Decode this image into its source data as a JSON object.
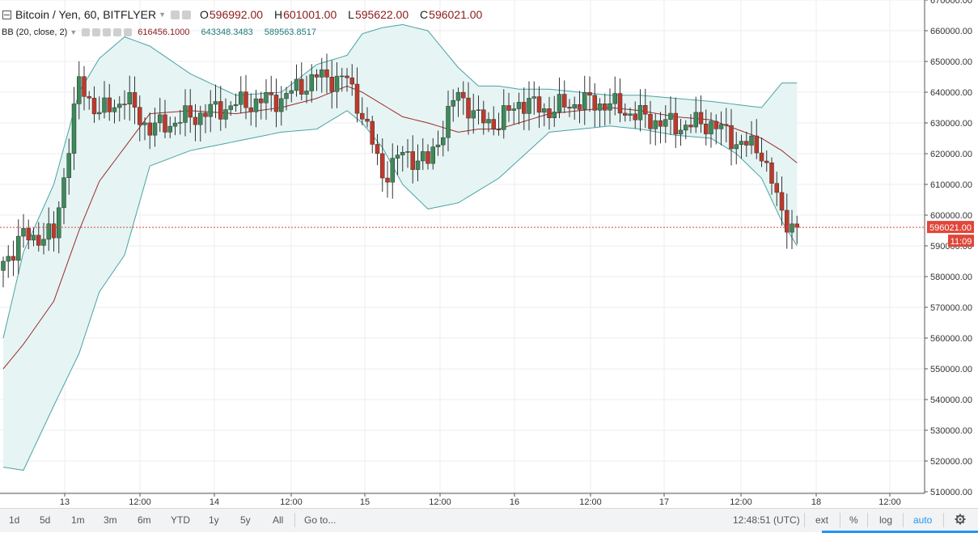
{
  "legend": {
    "symbol": "Bitcoin / Yen, 60, BITFLYER",
    "ohlc": [
      {
        "label": "O",
        "value": "596992.00"
      },
      {
        "label": "H",
        "value": "601001.00"
      },
      {
        "label": "L",
        "value": "595622.00"
      },
      {
        "label": "C",
        "value": "596021.00"
      }
    ],
    "bb_label": "BB (20, close, 2)",
    "bb_values": [
      "616456.1000",
      "643348.3483",
      "589563.8517"
    ]
  },
  "price_axis": {
    "labels": [
      "670000.00",
      "660000.00",
      "650000.00",
      "640000.00",
      "630000.00",
      "620000.00",
      "610000.00",
      "600000.00",
      "590000.00",
      "580000.00",
      "570000.00",
      "560000.00",
      "550000.00",
      "540000.00",
      "530000.00",
      "520000.00",
      "510000.00"
    ],
    "current_price": "596021.00",
    "countdown": "11:09"
  },
  "time_axis": {
    "labels": [
      "13",
      "12:00",
      "14",
      "12:00",
      "15",
      "12:00",
      "16",
      "12:00",
      "17",
      "12:00",
      "18",
      "12:00"
    ]
  },
  "bottom_toolbar": {
    "ranges": [
      "1d",
      "5d",
      "1m",
      "3m",
      "6m",
      "YTD",
      "1y",
      "5y",
      "All"
    ],
    "goto": "Go to...",
    "clock": "12:48:51 (UTC)",
    "ext": "ext",
    "percent": "%",
    "log": "log",
    "auto": "auto"
  },
  "colors": {
    "up": "#3d8a5a",
    "down": "#c0392b",
    "bb_band": "#4aa3a3",
    "bb_basis": "#9b2c2c",
    "bb_fill": "#e6f4f4",
    "price_tag": "#e0463a",
    "accent": "#2196f3"
  },
  "chart_data": {
    "type": "candlestick",
    "title": "Bitcoin / Yen, 60, BITFLYER",
    "ylim": [
      510000,
      670000
    ],
    "x_ticks": [
      "13",
      "12:00",
      "14",
      "12:00",
      "15",
      "12:00",
      "16",
      "12:00",
      "17",
      "12:00",
      "18",
      "12:00"
    ],
    "anchors": [
      {
        "bar": 0,
        "price": 585000,
        "upper": 560000,
        "basis": 550000,
        "lower": 518000
      },
      {
        "bar": 4,
        "price": 593000,
        "upper": 588000,
        "basis": 558000,
        "lower": 517000
      },
      {
        "bar": 10,
        "price": 593000,
        "upper": 610000,
        "basis": 572000,
        "lower": 538000
      },
      {
        "bar": 15,
        "price": 643000,
        "upper": 640000,
        "basis": 595000,
        "lower": 555000
      },
      {
        "bar": 19,
        "price": 633000,
        "upper": 651000,
        "basis": 611000,
        "lower": 575000
      },
      {
        "bar": 24,
        "price": 638000,
        "upper": 658000,
        "basis": 622000,
        "lower": 587000
      },
      {
        "bar": 29,
        "price": 628000,
        "upper": 655000,
        "basis": 633000,
        "lower": 616000
      },
      {
        "bar": 37,
        "price": 632000,
        "upper": 646000,
        "basis": 634000,
        "lower": 621000
      },
      {
        "bar": 46,
        "price": 636000,
        "upper": 639000,
        "basis": 633000,
        "lower": 624000
      },
      {
        "bar": 55,
        "price": 638000,
        "upper": 640000,
        "basis": 635000,
        "lower": 627000
      },
      {
        "bar": 62,
        "price": 645000,
        "upper": 649000,
        "basis": 638000,
        "lower": 628000
      },
      {
        "bar": 68,
        "price": 644000,
        "upper": 652000,
        "basis": 642000,
        "lower": 634000
      },
      {
        "bar": 71,
        "price": 633000,
        "upper": 659000,
        "basis": 640000,
        "lower": 630000
      },
      {
        "bar": 75,
        "price": 613000,
        "upper": 661000,
        "basis": 636000,
        "lower": 622000
      },
      {
        "bar": 79,
        "price": 620000,
        "upper": 662000,
        "basis": 632000,
        "lower": 610000
      },
      {
        "bar": 84,
        "price": 617000,
        "upper": 660000,
        "basis": 630000,
        "lower": 602000
      },
      {
        "bar": 90,
        "price": 640000,
        "upper": 648000,
        "basis": 627000,
        "lower": 604000
      },
      {
        "bar": 94,
        "price": 631000,
        "upper": 642000,
        "basis": 628000,
        "lower": 608000
      },
      {
        "bar": 98,
        "price": 630000,
        "upper": 642000,
        "basis": 628000,
        "lower": 612000
      },
      {
        "bar": 102,
        "price": 637000,
        "upper": 641000,
        "basis": 630000,
        "lower": 618000
      },
      {
        "bar": 108,
        "price": 634000,
        "upper": 641000,
        "basis": 633000,
        "lower": 627000
      },
      {
        "bar": 114,
        "price": 637000,
        "upper": 640000,
        "basis": 634000,
        "lower": 628000
      },
      {
        "bar": 120,
        "price": 636000,
        "upper": 639000,
        "basis": 635000,
        "lower": 629000
      },
      {
        "bar": 126,
        "price": 632000,
        "upper": 639000,
        "basis": 634000,
        "lower": 628000
      },
      {
        "bar": 133,
        "price": 629000,
        "upper": 638000,
        "basis": 632000,
        "lower": 626000
      },
      {
        "bar": 140,
        "price": 630000,
        "upper": 637000,
        "basis": 631000,
        "lower": 625000
      },
      {
        "bar": 145,
        "price": 624000,
        "upper": 636000,
        "basis": 628000,
        "lower": 620000
      },
      {
        "bar": 150,
        "price": 621000,
        "upper": 635000,
        "basis": 625000,
        "lower": 612000
      },
      {
        "bar": 154,
        "price": 600000,
        "upper": 643000,
        "basis": 621000,
        "lower": 598000
      },
      {
        "bar": 157,
        "price": 596021,
        "upper": 643000,
        "basis": 617000,
        "lower": 590000
      }
    ]
  }
}
